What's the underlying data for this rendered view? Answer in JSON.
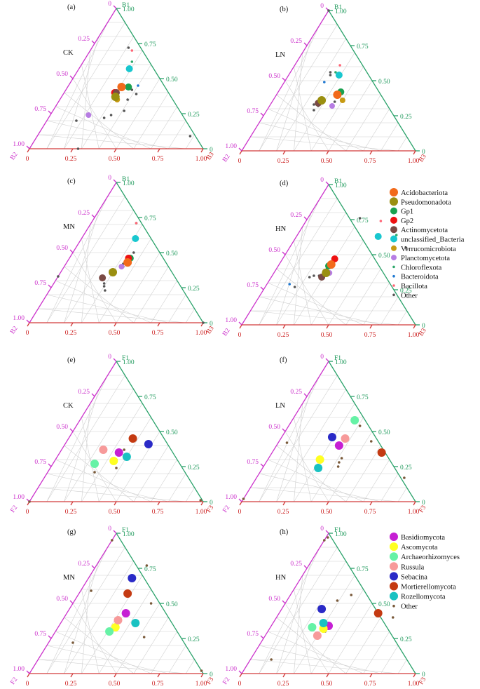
{
  "chart_data": {
    "type": "scatter",
    "subtype": "ternary",
    "bacteria_legend": [
      {
        "name": "Acidobacteriota",
        "color": "#f26a1b",
        "size": "large"
      },
      {
        "name": "Pseudomonadota",
        "color": "#9a8f10",
        "size": "large"
      },
      {
        "name": "Gp1",
        "color": "#1aa14f",
        "size": "medium"
      },
      {
        "name": "Gp2",
        "color": "#ee1111",
        "size": "medium"
      },
      {
        "name": "Actinomycetota",
        "color": "#7a4a45",
        "size": "medium"
      },
      {
        "name": "unclassified_Bacteria",
        "color": "#19c7cf",
        "size": "medium"
      },
      {
        "name": "Verrucomicrobiota",
        "color": "#c79a12",
        "size": "small"
      },
      {
        "name": "Planctomycetota",
        "color": "#b77de3",
        "size": "small"
      },
      {
        "name": "Chloroflexota",
        "color": "#2ea86b",
        "size": "tiny"
      },
      {
        "name": "Bacteroidota",
        "color": "#1f78d1",
        "size": "tiny"
      },
      {
        "name": "Bacillota",
        "color": "#ff6677",
        "size": "tiny"
      },
      {
        "name": "Other",
        "color": "#555555",
        "size": "tiny"
      }
    ],
    "fungi_legend": [
      {
        "name": "Basidiomycota",
        "color": "#c61fd4",
        "size": "large"
      },
      {
        "name": "Ascomycota",
        "color": "#ffff22",
        "size": "large"
      },
      {
        "name": "Archaeorhizomyces",
        "color": "#66f2a6",
        "size": "large"
      },
      {
        "name": "Russula",
        "color": "#f79a9a",
        "size": "large"
      },
      {
        "name": "Sebacina",
        "color": "#2a2ac7",
        "size": "large"
      },
      {
        "name": "Mortierellomycota",
        "color": "#c43a12",
        "size": "large"
      },
      {
        "name": "Rozellomycota",
        "color": "#19c2c2",
        "size": "large"
      },
      {
        "name": "Other",
        "color": "#7a5a3a",
        "size": "tiny"
      }
    ],
    "panels": [
      {
        "id": "a",
        "tag": "(a)",
        "sample": "CK",
        "top": "B1",
        "left": "B2",
        "right": "B3",
        "points": [
          [
            0.44,
            0.31,
            "Acidobacteriota"
          ],
          [
            0.37,
            0.31,
            "Pseudomonadota"
          ],
          [
            0.44,
            0.35,
            "Gp1"
          ],
          [
            0.4,
            0.29,
            "Gp2"
          ],
          [
            0.4,
            0.3,
            "Actinomycetota"
          ],
          [
            0.57,
            0.29,
            "unclassified_Bacteria"
          ],
          [
            0.35,
            0.33,
            "Verrucomicrobiota"
          ],
          [
            0.24,
            0.22,
            "Planctomycetota"
          ],
          [
            0.62,
            0.28,
            "Chloroflexota"
          ],
          [
            0.45,
            0.4,
            "Bacteroidota"
          ],
          [
            0.7,
            0.24,
            "Bacillota"
          ],
          [
            0.09,
            0.88,
            "Other"
          ],
          [
            0.39,
            0.42,
            "Other"
          ],
          [
            0.42,
            0.38,
            "Other"
          ],
          [
            0.35,
            0.39,
            "Other"
          ],
          [
            0.27,
            0.41,
            "Other"
          ],
          [
            0.22,
            0.32,
            "Other"
          ],
          [
            0.2,
            0.17,
            "Other"
          ],
          [
            0.72,
            0.21,
            "Other"
          ],
          [
            0.0,
            0.28,
            "Other"
          ],
          [
            0.24,
            0.35,
            "Other"
          ]
        ]
      },
      {
        "id": "b",
        "tag": "(b)",
        "sample": "LN",
        "top": "B1",
        "left": "B2",
        "right": "B3",
        "points": [
          [
            0.4,
            0.35,
            "Acidobacteriota"
          ],
          [
            0.36,
            0.28,
            "Pseudomonadota"
          ],
          [
            0.42,
            0.36,
            "Gp1"
          ],
          [
            0.4,
            0.35,
            "Gp2"
          ],
          [
            0.34,
            0.27,
            "Actinomycetota"
          ],
          [
            0.54,
            0.29,
            "unclassified_Bacteria"
          ],
          [
            0.36,
            0.4,
            "Verrucomicrobiota"
          ],
          [
            0.32,
            0.36,
            "Planctomycetota"
          ],
          [
            0.56,
            0.26,
            "Chloroflexota"
          ],
          [
            0.49,
            0.23,
            "Bacteroidota"
          ],
          [
            0.61,
            0.26,
            "Bacillota"
          ],
          [
            0.35,
            0.36,
            "Other"
          ],
          [
            0.33,
            0.25,
            "Other"
          ],
          [
            0.29,
            0.27,
            "Other"
          ],
          [
            0.32,
            0.28,
            "Other"
          ],
          [
            0.56,
            0.23,
            "Other"
          ],
          [
            1.0,
            0.0,
            "Other"
          ],
          [
            0.54,
            0.24,
            "Other"
          ]
        ]
      },
      {
        "id": "c",
        "tag": "(c)",
        "sample": "MN",
        "top": "B1",
        "left": "B2",
        "right": "B3",
        "points": [
          [
            0.43,
            0.35,
            "Acidobacteriota"
          ],
          [
            0.36,
            0.3,
            "Pseudomonadota"
          ],
          [
            0.46,
            0.35,
            "Gp1"
          ],
          [
            0.46,
            0.34,
            "Gp2"
          ],
          [
            0.32,
            0.26,
            "Actinomycetota"
          ],
          [
            0.6,
            0.31,
            "unclassified_Bacteria"
          ],
          [
            0.4,
            0.33,
            "Planctomycetota"
          ],
          [
            0.71,
            0.26,
            "Chloroflexota"
          ],
          [
            0.37,
            0.28,
            "Bacteroidota"
          ],
          [
            0.71,
            0.26,
            "Bacillota"
          ],
          [
            0.4,
            0.34,
            "Other"
          ],
          [
            0.42,
            0.33,
            "Other"
          ],
          [
            0.28,
            0.29,
            "Other"
          ],
          [
            0.26,
            0.3,
            "Other"
          ],
          [
            0.23,
            0.32,
            "Other"
          ],
          [
            0.33,
            0.0,
            "Other"
          ],
          [
            0.5,
            0.35,
            "Other"
          ],
          [
            0.0,
            1.0,
            "Other"
          ]
        ]
      },
      {
        "id": "d",
        "tag": "(d)",
        "sample": "HN",
        "top": "B1",
        "left": "B2",
        "right": "B3",
        "points": [
          [
            0.43,
            0.3,
            "Acidobacteriota"
          ],
          [
            0.37,
            0.3,
            "Pseudomonadota"
          ],
          [
            0.42,
            0.29,
            "Gp1"
          ],
          [
            0.47,
            0.3,
            "Gp2"
          ],
          [
            0.34,
            0.29,
            "Actinomycetota"
          ],
          [
            0.63,
            0.47,
            "unclassified_Bacteria"
          ],
          [
            0.38,
            0.29,
            "Verrucomicrobiota"
          ],
          [
            0.37,
            0.32,
            "Planctomycetota"
          ],
          [
            0.64,
            0.57,
            "Chloroflexota"
          ],
          [
            0.29,
            0.13,
            "Bacteroidota"
          ],
          [
            0.74,
            0.43,
            "Bacillota"
          ],
          [
            0.55,
            0.67,
            "Other"
          ],
          [
            0.35,
            0.24,
            "Other"
          ],
          [
            0.34,
            0.22,
            "Other"
          ],
          [
            0.27,
            0.17,
            "Other"
          ],
          [
            0.76,
            0.3,
            "Other"
          ],
          [
            0.4,
            0.29,
            "Other"
          ],
          [
            0.35,
            0.27,
            "Other"
          ]
        ]
      },
      {
        "id": "e",
        "tag": "(e)",
        "sample": "CK",
        "top": "F1",
        "left": "F2",
        "right": "F3",
        "points": [
          [
            0.35,
            0.34,
            "Basidiomycota"
          ],
          [
            0.29,
            0.34,
            "Ascomycota"
          ],
          [
            0.27,
            0.24,
            "Archaeorhizomyces"
          ],
          [
            0.37,
            0.24,
            "Russula"
          ],
          [
            0.41,
            0.48,
            "Sebacina"
          ],
          [
            0.45,
            0.37,
            "Mortierellomycota"
          ],
          [
            0.32,
            0.4,
            "Rozellomycota"
          ],
          [
            0.01,
            0.98,
            "Other"
          ],
          [
            0.0,
            0.0,
            "Other"
          ],
          [
            0.33,
            0.38,
            "Other"
          ],
          [
            0.3,
            0.35,
            "Other"
          ],
          [
            0.24,
            0.38,
            "Other"
          ],
          [
            0.21,
            0.27,
            "Other"
          ],
          [
            0.37,
            0.36,
            "Other"
          ]
        ]
      },
      {
        "id": "f",
        "tag": "(f)",
        "sample": "LN",
        "top": "F1",
        "left": "F2",
        "right": "F3",
        "points": [
          [
            0.4,
            0.36,
            "Basidiomycota"
          ],
          [
            0.3,
            0.3,
            "Ascomycota"
          ],
          [
            0.58,
            0.36,
            "Archaeorhizomyces"
          ],
          [
            0.45,
            0.37,
            "Russula"
          ],
          [
            0.46,
            0.29,
            "Sebacina"
          ],
          [
            0.35,
            0.63,
            "Mortierellomycota"
          ],
          [
            0.24,
            0.32,
            "Rozellomycota"
          ],
          [
            0.17,
            0.85,
            "Other"
          ],
          [
            0.43,
            0.53,
            "Other"
          ],
          [
            0.31,
            0.42,
            "Other"
          ],
          [
            0.28,
            0.42,
            "Other"
          ],
          [
            0.25,
            0.43,
            "Other"
          ],
          [
            0.02,
            0.0,
            "Other"
          ],
          [
            0.42,
            0.05,
            "Other"
          ],
          [
            0.54,
            0.41,
            "Other"
          ]
        ]
      },
      {
        "id": "g",
        "tag": "(g)",
        "sample": "MN",
        "top": "F1",
        "left": "F2",
        "right": "F3",
        "points": [
          [
            0.43,
            0.34,
            "Basidiomycota"
          ],
          [
            0.33,
            0.33,
            "Ascomycota"
          ],
          [
            0.3,
            0.31,
            "Archaeorhizomyces"
          ],
          [
            0.38,
            0.32,
            "Russula"
          ],
          [
            0.68,
            0.25,
            "Sebacina"
          ],
          [
            0.57,
            0.28,
            "Mortierellomycota"
          ],
          [
            0.36,
            0.43,
            "Rozellomycota"
          ],
          [
            0.02,
            0.98,
            "Other"
          ],
          [
            0.5,
            0.45,
            "Other"
          ],
          [
            0.26,
            0.53,
            "Other"
          ],
          [
            0.22,
            0.14,
            "Other"
          ],
          [
            0.77,
            0.29,
            "Other"
          ],
          [
            0.59,
            0.06,
            "Other"
          ],
          [
            0.95,
            0.0,
            "Other"
          ]
        ]
      },
      {
        "id": "h",
        "tag": "(h)",
        "sample": "HN",
        "top": "F1",
        "left": "F2",
        "right": "F3",
        "points": [
          [
            0.34,
            0.33,
            "Basidiomycota"
          ],
          [
            0.32,
            0.31,
            "Ascomycota"
          ],
          [
            0.33,
            0.24,
            "Archaeorhizomyces"
          ],
          [
            0.27,
            0.3,
            "Russula"
          ],
          [
            0.46,
            0.23,
            "Sebacina"
          ],
          [
            0.43,
            0.57,
            "Mortierellomycota"
          ],
          [
            0.36,
            0.29,
            "Rozellomycota"
          ],
          [
            0.4,
            0.67,
            "Other"
          ],
          [
            0.56,
            0.35,
            "Other"
          ],
          [
            0.52,
            0.29,
            "Other"
          ],
          [
            0.95,
            0.0,
            "Other"
          ],
          [
            0.97,
            0.01,
            "Other"
          ],
          [
            0.1,
            0.12,
            "Other"
          ],
          [
            0.3,
            0.33,
            "Other"
          ]
        ]
      }
    ]
  }
}
